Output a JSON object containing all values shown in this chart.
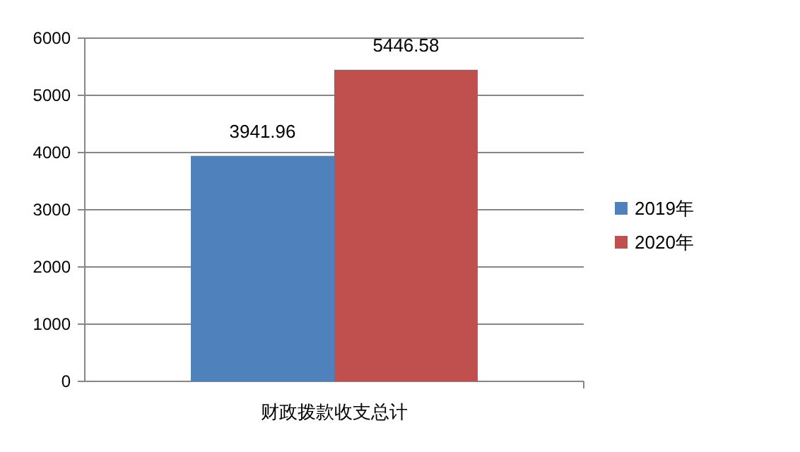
{
  "chart_data": {
    "type": "bar",
    "categories": [
      "财政拨款收支总计"
    ],
    "series": [
      {
        "name": "2019年",
        "color": "#4f81bd",
        "values": [
          3941.96
        ]
      },
      {
        "name": "2020年",
        "color": "#c0504d",
        "values": [
          5446.58
        ]
      }
    ],
    "ylim": [
      0,
      6000
    ],
    "yticks": [
      0,
      1000,
      2000,
      3000,
      4000,
      5000,
      6000
    ],
    "grid": "y",
    "legend": "right",
    "data_labels": true
  }
}
